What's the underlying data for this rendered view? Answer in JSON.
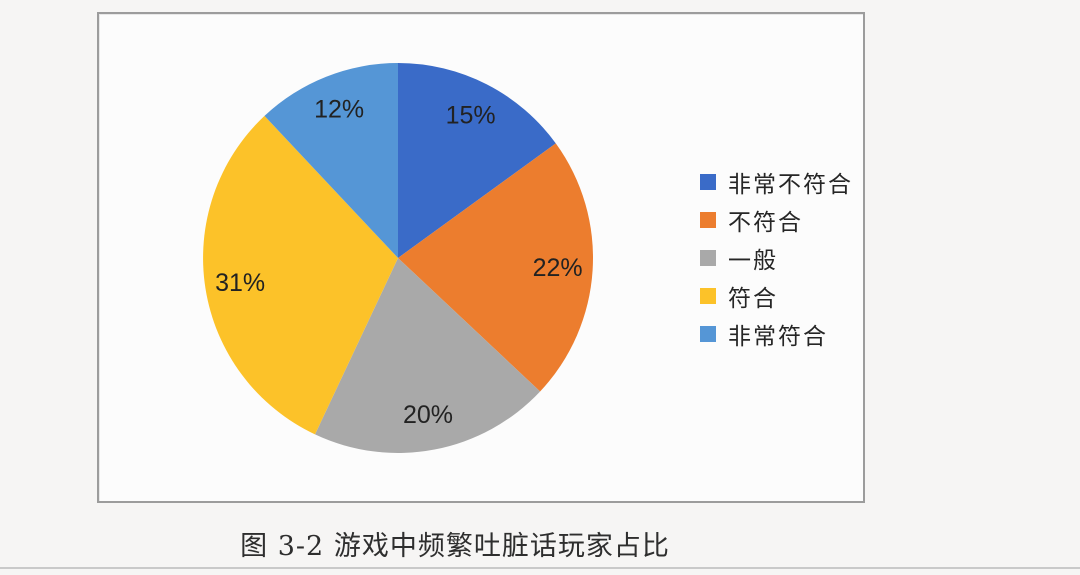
{
  "caption": {
    "text": "图 3-2 游戏中频繁吐脏话玩家占比"
  },
  "chart_data": {
    "type": "pie",
    "title": "游戏中频繁吐脏话玩家占比",
    "categories": [
      "非常不符合",
      "不符合",
      "一般",
      "符合",
      "非常符合"
    ],
    "values": [
      15,
      22,
      20,
      31,
      12
    ],
    "slice_labels": [
      "15%",
      "22%",
      "20%",
      "31%",
      "12%"
    ],
    "colors": [
      "#3a6bc8",
      "#ec7d2e",
      "#a9a9a9",
      "#fcc229",
      "#5596d6"
    ],
    "unit": "percent",
    "start_angle_deg": 0,
    "direction": "clockwise",
    "legend_position": "right"
  }
}
